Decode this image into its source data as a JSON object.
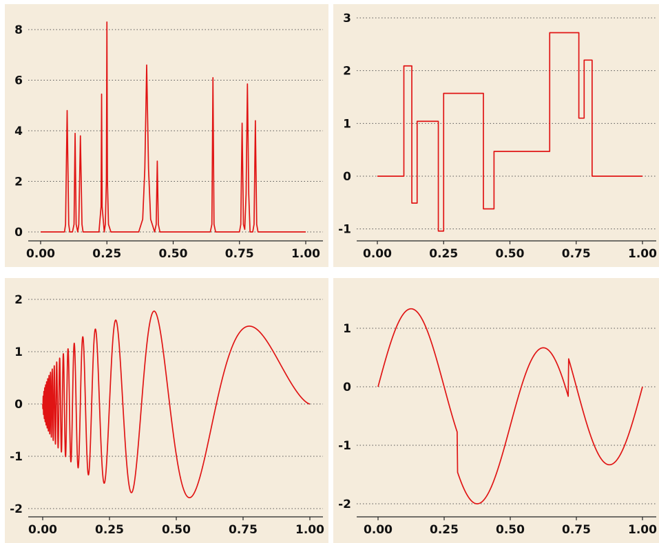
{
  "chart_data": [
    {
      "type": "line",
      "title": "",
      "xlabel": "",
      "ylabel": "",
      "xlim": [
        -0.05,
        1.05
      ],
      "ylim": [
        -0.4,
        8.5
      ],
      "xticks": [
        0.0,
        0.25,
        0.5,
        0.75,
        1.0
      ],
      "xtick_labels": [
        "0.00",
        "0.25",
        "0.50",
        "0.75",
        "1.00"
      ],
      "yticks": [
        0,
        2,
        4,
        6,
        8
      ],
      "ytick_labels": [
        "0",
        "2",
        "4",
        "6",
        "8"
      ],
      "grid": "horizontal-dotted",
      "line_color": "#e01414",
      "x": [
        0.0,
        0.09,
        0.094,
        0.1,
        0.106,
        0.11,
        0.12,
        0.126,
        0.13,
        0.134,
        0.14,
        0.144,
        0.15,
        0.156,
        0.16,
        0.22,
        0.228,
        0.23,
        0.232,
        0.24,
        0.244,
        0.248,
        0.25,
        0.252,
        0.256,
        0.265,
        0.37,
        0.385,
        0.393,
        0.4,
        0.407,
        0.415,
        0.43,
        0.436,
        0.44,
        0.444,
        0.45,
        0.64,
        0.646,
        0.65,
        0.654,
        0.66,
        0.75,
        0.755,
        0.76,
        0.765,
        0.77,
        0.775,
        0.78,
        0.785,
        0.79,
        0.8,
        0.805,
        0.81,
        0.815,
        0.82,
        1.0
      ],
      "y": [
        0,
        0,
        0.3,
        4.8,
        0.3,
        0,
        0,
        0.3,
        3.9,
        0.3,
        0,
        0.3,
        3.8,
        0.3,
        0,
        0,
        1.0,
        5.45,
        1.0,
        0,
        0.3,
        2.0,
        8.3,
        2.0,
        0.3,
        0,
        0,
        0.5,
        2.5,
        6.6,
        2.5,
        0.5,
        0,
        0.3,
        2.8,
        0.3,
        0,
        0,
        0.3,
        6.1,
        0.3,
        0,
        0,
        0.3,
        4.3,
        0.3,
        0.1,
        1.5,
        5.85,
        1.5,
        0,
        0,
        0.3,
        4.4,
        0.3,
        0,
        0
      ]
    },
    {
      "type": "line",
      "title": "",
      "xlabel": "",
      "ylabel": "",
      "xlim": [
        -0.05,
        1.05
      ],
      "ylim": [
        -1.3,
        3.1
      ],
      "xticks": [
        0.0,
        0.25,
        0.5,
        0.75,
        1.0
      ],
      "xtick_labels": [
        "0.00",
        "0.25",
        "0.50",
        "0.75",
        "1.00"
      ],
      "yticks": [
        -1,
        0,
        1,
        2,
        3
      ],
      "ytick_labels": [
        "-1",
        "0",
        "1",
        "2",
        "3"
      ],
      "grid": "horizontal-dotted",
      "line_color": "#e01414",
      "x": [
        0.0,
        0.1,
        0.1,
        0.13,
        0.13,
        0.15,
        0.15,
        0.23,
        0.23,
        0.25,
        0.25,
        0.4,
        0.4,
        0.44,
        0.44,
        0.65,
        0.65,
        0.76,
        0.76,
        0.78,
        0.78,
        0.81,
        0.81,
        1.0
      ],
      "y": [
        0,
        0,
        2.09,
        2.09,
        -0.51,
        -0.51,
        1.04,
        1.04,
        -1.04,
        -1.04,
        1.57,
        1.57,
        -0.62,
        -0.62,
        0.47,
        0.47,
        2.72,
        2.72,
        1.1,
        1.1,
        2.2,
        2.2,
        0,
        0
      ]
    },
    {
      "type": "line",
      "title": "",
      "xlabel": "",
      "ylabel": "",
      "xlim": [
        -0.05,
        1.05
      ],
      "ylim": [
        -2.1,
        2.15
      ],
      "xticks": [
        0.0,
        0.25,
        0.5,
        0.75,
        1.0
      ],
      "xtick_labels": [
        "0.00",
        "0.25",
        "0.50",
        "0.75",
        "1.00"
      ],
      "yticks": [
        -2,
        -1,
        0,
        1,
        2
      ],
      "ytick_labels": [
        "-2",
        "-1",
        "0",
        "1",
        "2"
      ],
      "grid": "horizontal-dotted",
      "line_color": "#e01414",
      "function": "doppler: sqrt(x*(1-x))*sin(2.1*pi/(x+0.05)) * 3.6 (amplitude read from y axis)",
      "extrema": [
        {
          "x": 0.375,
          "y": 1.7
        },
        {
          "x": 0.495,
          "y": -1.78
        },
        {
          "x": 0.7,
          "y": 1.62
        },
        {
          "x": 0.975,
          "y": -0.25
        },
        {
          "x": 0.295,
          "y": -1.62
        },
        {
          "x": 0.245,
          "y": 1.5
        }
      ]
    },
    {
      "type": "line",
      "title": "",
      "xlabel": "",
      "ylabel": "",
      "xlim": [
        -0.05,
        1.05
      ],
      "ylim": [
        -2.2,
        1.55
      ],
      "xticks": [
        0.0,
        0.25,
        0.5,
        0.75,
        1.0
      ],
      "xtick_labels": [
        "0.00",
        "0.25",
        "0.50",
        "0.75",
        "1.00"
      ],
      "yticks": [
        -2,
        -1,
        0,
        1
      ],
      "ytick_labels": [
        "-2",
        "-1",
        "0",
        "1"
      ],
      "grid": "horizontal-dotted",
      "line_color": "#e01414",
      "function": "heavisine: 4*sin(4*pi*x) - sign(x-0.3) - sign(0.72-x), scaled by 1/3",
      "extrema": [
        {
          "x": 0.125,
          "y": 1.33
        },
        {
          "x": 0.3,
          "y": -0.76
        },
        {
          "x": 0.3,
          "y": -1.48
        },
        {
          "x": 0.375,
          "y": -2.0
        },
        {
          "x": 0.625,
          "y": 0.67
        },
        {
          "x": 0.72,
          "y": -0.15
        },
        {
          "x": 0.72,
          "y": 0.48
        },
        {
          "x": 0.875,
          "y": -1.33
        },
        {
          "x": 1.0,
          "y": 0.0
        }
      ]
    }
  ]
}
